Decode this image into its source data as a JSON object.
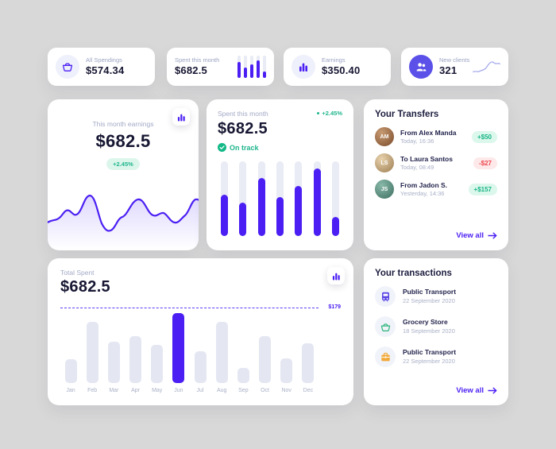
{
  "colors": {
    "background": "#d8d8d8",
    "card": "#ffffff",
    "accent_purple": "#4b1ff3",
    "soft_purple_circle": "#5b51e9",
    "track_gray": "#e9ebf5",
    "label_gray": "#9ba3c2",
    "text_dark": "#171733",
    "positive_green": "#1fb68c",
    "negative_red": "#f0454f",
    "transaction_bus": "#5b46e5",
    "transaction_basket": "#2bb57a",
    "transaction_case": "#f2a93b"
  },
  "stats": [
    {
      "label": "All Spendings",
      "value": "$574.34",
      "icon": "basket-icon"
    },
    {
      "label": "Spent this month",
      "value": "$682.5",
      "icon": "mini-bar-chart",
      "bars_pct": [
        70,
        48,
        60,
        78,
        28
      ]
    },
    {
      "label": "Earnings",
      "value": "$350.40",
      "icon": "bar-chart-icon"
    },
    {
      "label": "New clients",
      "value": "321",
      "icon": "people-icon"
    }
  ],
  "earnings_card": {
    "label": "This month earnings",
    "value": "$682.5",
    "change": "+2.45%"
  },
  "spent_card": {
    "label": "Spent this month",
    "value": "$682.5",
    "change": "+2.45%",
    "status": "On track",
    "bars_pct": [
      55,
      45,
      78,
      52,
      67,
      90,
      26
    ]
  },
  "transfers": {
    "title": "Your Transfers",
    "items": [
      {
        "name": "From Alex Manda",
        "time": "Today, 16:36",
        "amount": "+$50",
        "direction": "in",
        "initials": "AM"
      },
      {
        "name": "To Laura Santos",
        "time": "Today, 08:49",
        "amount": "-$27",
        "direction": "out",
        "initials": "LS"
      },
      {
        "name": "From Jadon S.",
        "time": "Yesterday, 14:36",
        "amount": "+$157",
        "direction": "in",
        "initials": "JS"
      }
    ],
    "view_all": "View all"
  },
  "total_spent_card": {
    "label": "Total Spent",
    "value": "$682.5",
    "threshold_label": "$179",
    "highlight_month": "Jun",
    "months": [
      {
        "label": "Jan",
        "pct": 34
      },
      {
        "label": "Feb",
        "pct": 88
      },
      {
        "label": "Mar",
        "pct": 59
      },
      {
        "label": "Apr",
        "pct": 67
      },
      {
        "label": "May",
        "pct": 54
      },
      {
        "label": "Jun",
        "pct": 100
      },
      {
        "label": "Jul",
        "pct": 46
      },
      {
        "label": "Aug",
        "pct": 88
      },
      {
        "label": "Sep",
        "pct": 22
      },
      {
        "label": "Oct",
        "pct": 67
      },
      {
        "label": "Nov",
        "pct": 35
      },
      {
        "label": "Dec",
        "pct": 57
      }
    ]
  },
  "transactions": {
    "title": "Your transactions",
    "items": [
      {
        "name": "Public Transport",
        "date": "22 September 2020",
        "icon": "bus-icon"
      },
      {
        "name": "Grocery Store",
        "date": "18 September 2020",
        "icon": "basket-icon"
      },
      {
        "name": "Public Transport",
        "date": "22 September 2020",
        "icon": "case-icon"
      }
    ],
    "view_all": "View all"
  },
  "chart_data": [
    {
      "type": "bar",
      "title": "Spent this month mini chart",
      "values_pct_of_max": [
        70,
        48,
        60,
        78,
        28
      ]
    },
    {
      "type": "line",
      "title": "New clients trend",
      "trend": "rising S-curve"
    },
    {
      "type": "line",
      "title": "This month earnings",
      "trend": "volatile wave, two major peaks, ends rising"
    },
    {
      "type": "bar",
      "title": "Spent this month",
      "values_pct_of_max": [
        55,
        45,
        78,
        52,
        67,
        90,
        26
      ]
    },
    {
      "type": "bar",
      "title": "Total Spent by month",
      "categories": [
        "Jan",
        "Feb",
        "Mar",
        "Apr",
        "May",
        "Jun",
        "Jul",
        "Aug",
        "Sep",
        "Oct",
        "Nov",
        "Dec"
      ],
      "values_pct_of_max": [
        34,
        88,
        59,
        67,
        54,
        100,
        46,
        88,
        22,
        67,
        35,
        57
      ],
      "threshold": "$179",
      "highlight": "Jun",
      "ylabel": "",
      "xlabel": ""
    }
  ]
}
